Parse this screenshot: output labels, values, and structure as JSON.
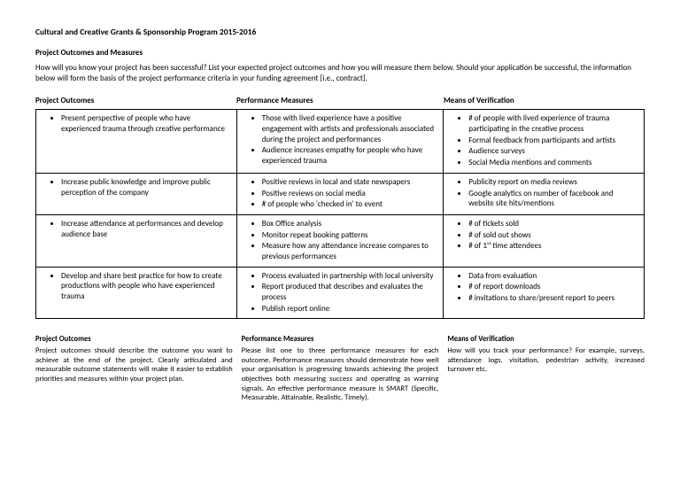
{
  "title": "Cultural and Creative Grants & Sponsorship Program 2015-2016",
  "section": "Project Outcomes and Measures",
  "intro": "How will you know your project has been successful? List your expected project outcomes and how you will measure them below. Should your application be successful, the information below will form the basis of the project performance criteria in your funding agreement [i.e., contract].",
  "headers": {
    "outcomes": "Project Outcomes",
    "measures": "Performance Measures",
    "verification": "Means of Verification"
  },
  "rows": [
    {
      "outcomes": [
        "Present perspective of people who have experienced trauma through creative performance"
      ],
      "measures": [
        "Those with lived experience have a positive engagement with artists and professionals associated during the project and performances",
        "Audience increases empathy for people who have experienced trauma"
      ],
      "verification": [
        "# of people with lived experience of trauma participating in the creative process",
        "Formal feedback from participants and artists",
        "Audience surveys",
        "Social Media mentions and comments"
      ]
    },
    {
      "outcomes": [
        "Increase public knowledge and improve public perception of the company"
      ],
      "measures": [
        "Positive reviews in local and state newspapers",
        "Positive reviews on social media",
        "# of people who 'checked in' to event"
      ],
      "verification": [
        "Publicity report on media reviews",
        "Google analytics on number of facebook and website site hits/mentions"
      ]
    },
    {
      "outcomes": [
        "Increase attendance at performances and develop audience base"
      ],
      "measures": [
        "Box Office analysis",
        "Monitor repeat booking patterns",
        "Measure how any attendance increase compares to previous performances"
      ],
      "verification": [
        "# of tickets sold",
        "# of sold out shows",
        "# of 1ˢᵗ time attendees"
      ]
    },
    {
      "outcomes": [
        "Develop and share best practice for how to create productions with people who have experienced trauma"
      ],
      "measures": [
        "Process evaluated in partnership with local university",
        "Report produced that describes and evaluates the process",
        "Publish report online"
      ],
      "verification": [
        "Data from evaluation",
        "# of report downloads",
        "# invitations to share/present report to peers"
      ]
    }
  ],
  "footer": {
    "outcomes": {
      "title": "Project Outcomes",
      "text": "Project outcomes should describe the outcome you want to achieve at the end of the project. Clearly articulated and measurable outcome statements will make it easier to establish priorities and measures within your project plan."
    },
    "measures": {
      "title": "Performance Measures",
      "text": "Please list one to three performance measures for each outcome. Performance measures should demonstrate how well your organisation is progressing towards achieving the project objectives both measuring success and operating as warning signals. An effective performance measure is SMART (Specific, Measurable, Attainable, Realistic, Timely)."
    },
    "verification": {
      "title": "Means of Verification",
      "text": "How will you track your performance? For example, surveys, attendance logs, visitation, pedestrian activity, increased turnover etc."
    }
  }
}
